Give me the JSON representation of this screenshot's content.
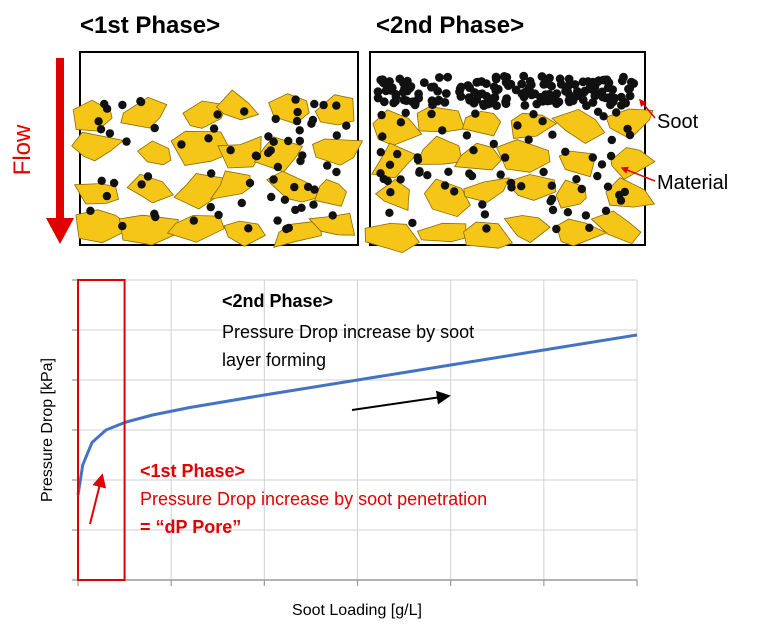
{
  "top": {
    "phase1_title": "<1st Phase>",
    "phase2_title": "<2nd Phase>",
    "flow_label": "Flow",
    "soot_label": "Soot",
    "material_label": "Material"
  },
  "colors": {
    "soot": "#111111",
    "material": "#f5c518",
    "material_edge": "#8a6a00",
    "accent_red": "#e00000",
    "curve_blue": "#4472c4",
    "grid": "#d0d0d0"
  },
  "annotations": {
    "phase2_title": "<2nd Phase>",
    "phase2_line1": "Pressure Drop increase by soot",
    "phase2_line2": "layer forming",
    "phase1_title": "<1st Phase>",
    "phase1_line1": "Pressure Drop increase by soot penetration",
    "phase1_line2": "= “dP Pore”"
  },
  "chart_data": {
    "type": "line",
    "title": "",
    "xlabel": "Soot Loading [g/L]",
    "ylabel": "Pressure Drop [kPa]",
    "x_tick_labels": [],
    "y_tick_labels": [],
    "grid": true,
    "legend": "none",
    "xlim": [
      0,
      6
    ],
    "ylim": [
      0,
      6
    ],
    "series": [
      {
        "color": "#4472c4",
        "x": [
          0,
          0.05,
          0.15,
          0.3,
          0.5,
          0.8,
          1.2,
          2.0,
          3.0,
          4.0,
          5.0,
          6.0
        ],
        "y": [
          1.7,
          2.3,
          2.75,
          3.0,
          3.15,
          3.3,
          3.45,
          3.7,
          4.0,
          4.3,
          4.6,
          4.9
        ]
      }
    ],
    "highlight_region_x": [
      0,
      0.5
    ]
  }
}
